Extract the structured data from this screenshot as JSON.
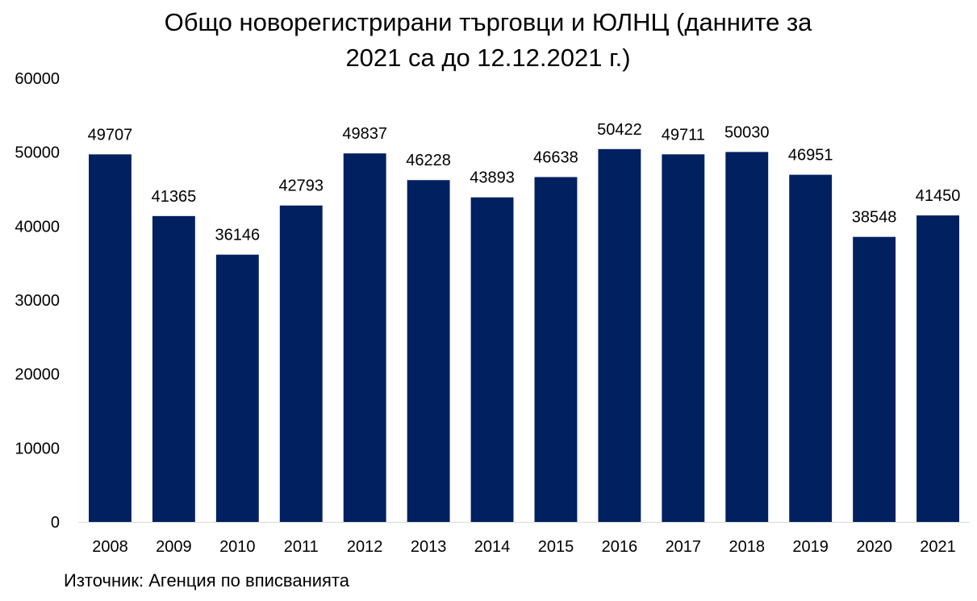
{
  "chart_data": {
    "type": "bar",
    "title_line1": "Общо новорегистрирани търговци и ЮЛНЦ (данните за",
    "title_line2": "2021 са до 12.12.2021 г.)",
    "categories": [
      "2008",
      "2009",
      "2010",
      "2011",
      "2012",
      "2013",
      "2014",
      "2015",
      "2016",
      "2017",
      "2018",
      "2019",
      "2020",
      "2021"
    ],
    "values": [
      49707,
      41365,
      36146,
      42793,
      49837,
      46228,
      43893,
      46638,
      50422,
      49711,
      50030,
      46951,
      38548,
      41450
    ],
    "data_labels": [
      "49707",
      "41365",
      "36146",
      "42793",
      "49837",
      "46228",
      "43893",
      "46638",
      "50422",
      "49711",
      "50030",
      "46951",
      "38548",
      "41450"
    ],
    "y_ticks": [
      0,
      10000,
      20000,
      30000,
      40000,
      50000,
      60000
    ],
    "y_tick_labels": [
      "0",
      "10000",
      "20000",
      "30000",
      "40000",
      "50000",
      "60000"
    ],
    "ylim": [
      0,
      60000
    ],
    "xlabel": "",
    "ylabel": "",
    "grid": false,
    "legend": "none",
    "bar_color": "#002060",
    "source": "Източник: Агенция по вписванията"
  }
}
